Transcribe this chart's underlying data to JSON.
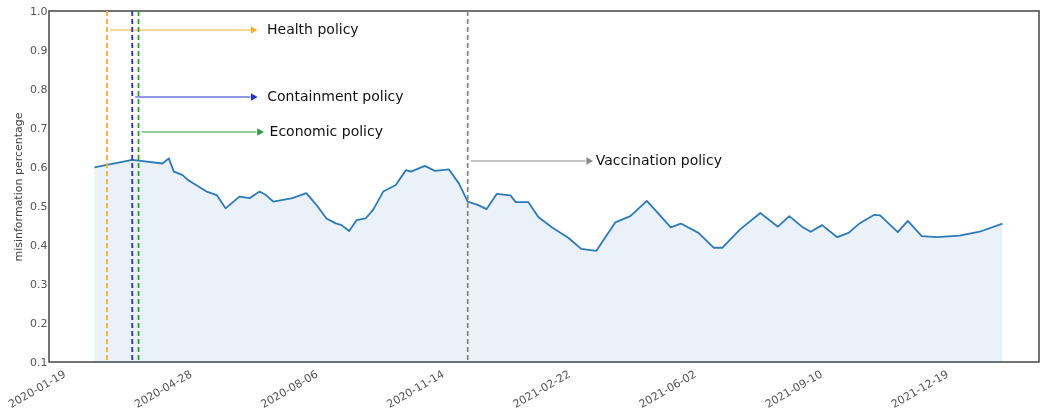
{
  "chart_data": {
    "type": "area",
    "ylabel": "misinformation percentage",
    "x": [
      "2020-02-14",
      "2020-03-15",
      "2020-04-08",
      "2020-04-13",
      "2020-04-17",
      "2020-04-24",
      "2020-04-28",
      "2020-05-02",
      "2020-05-13",
      "2020-05-21",
      "2020-05-28",
      "2020-06-08",
      "2020-06-16",
      "2020-06-24",
      "2020-06-29",
      "2020-07-05",
      "2020-07-20",
      "2020-07-31",
      "2020-08-08",
      "2020-08-16",
      "2020-08-23",
      "2020-08-28",
      "2020-09-03",
      "2020-09-09",
      "2020-09-16",
      "2020-09-22",
      "2020-09-30",
      "2020-10-10",
      "2020-10-18",
      "2020-10-22",
      "2020-11-02",
      "2020-11-10",
      "2020-11-21",
      "2020-11-29",
      "2020-12-06",
      "2020-12-14",
      "2020-12-21",
      "2020-12-29",
      "2021-01-09",
      "2021-01-13",
      "2021-01-23",
      "2021-01-31",
      "2021-02-11",
      "2021-02-24",
      "2021-03-06",
      "2021-03-18",
      "2021-04-02",
      "2021-04-14",
      "2021-04-27",
      "2021-05-05",
      "2021-05-16",
      "2021-05-24",
      "2021-06-07",
      "2021-06-19",
      "2021-06-26",
      "2021-07-10",
      "2021-07-26",
      "2021-08-09",
      "2021-08-18",
      "2021-08-28",
      "2021-09-04",
      "2021-09-13",
      "2021-09-25",
      "2021-10-04",
      "2021-10-13",
      "2021-10-24",
      "2021-10-29",
      "2021-11-12",
      "2021-11-20",
      "2021-12-01",
      "2021-12-13",
      "2021-12-31",
      "2022-01-16",
      "2022-02-03"
    ],
    "series": [
      {
        "color": "#2e7ab6",
        "values": [
          0.599,
          0.618,
          0.609,
          0.622,
          0.588,
          0.579,
          0.567,
          0.559,
          0.537,
          0.528,
          0.494,
          0.524,
          0.52,
          0.537,
          0.528,
          0.511,
          0.52,
          0.533,
          0.503,
          0.468,
          0.456,
          0.451,
          0.436,
          0.464,
          0.468,
          0.49,
          0.537,
          0.554,
          0.592,
          0.588,
          0.603,
          0.59,
          0.594,
          0.558,
          0.511,
          0.503,
          0.492,
          0.531,
          0.527,
          0.51,
          0.51,
          0.472,
          0.445,
          0.418,
          0.39,
          0.385,
          0.458,
          0.474,
          0.513,
          0.485,
          0.445,
          0.455,
          0.431,
          0.393,
          0.393,
          0.44,
          0.482,
          0.447,
          0.474,
          0.447,
          0.434,
          0.451,
          0.42,
          0.431,
          0.456,
          0.477,
          0.476,
          0.433,
          0.462,
          0.423,
          0.42,
          0.424,
          0.434,
          0.455
        ]
      }
    ],
    "xlim": [
      "2020-01-09",
      "2022-03-04"
    ],
    "xticks": [
      "2020-01-19",
      "2020-04-28",
      "2020-08-06",
      "2020-11-14",
      "2021-02-22",
      "2021-06-02",
      "2021-09-10",
      "2021-12-19"
    ],
    "ylim": [
      0.1,
      1.0
    ],
    "yticks": [
      0.1,
      0.2,
      0.3,
      0.4,
      0.5,
      0.6,
      0.7,
      0.8,
      0.9,
      {
        "value": 1,
        "label": "1.0"
      }
    ],
    "ref_lines": [
      {
        "axis": "x",
        "value": "2020-02-24",
        "label": "Health policy",
        "color": "#f4b030",
        "line_style": "dashed"
      },
      {
        "axis": "x",
        "value": "2020-03-15",
        "label": "Containment policy",
        "color": "#2233dd",
        "line_style": "dashed"
      },
      {
        "axis": "x",
        "value": "2020-03-20",
        "label": "Economic policy",
        "color": "#2e9b3e",
        "line_style": "dashed"
      },
      {
        "axis": "x",
        "value": "2020-12-06",
        "label": "Vaccination policy",
        "color": "#888888",
        "line_style": "dashed"
      }
    ]
  }
}
